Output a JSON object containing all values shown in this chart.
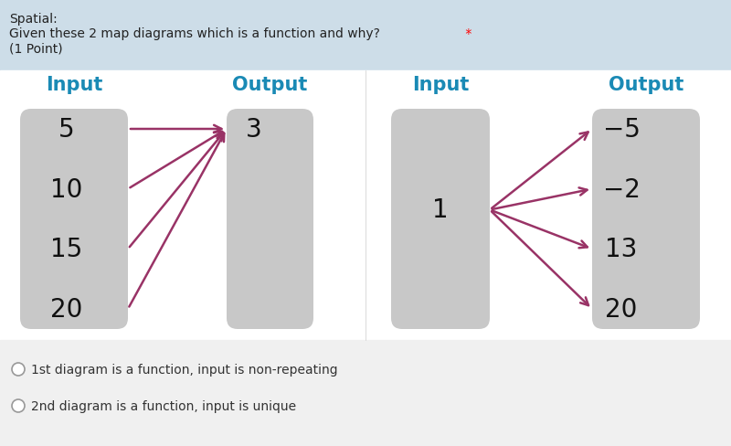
{
  "bg_top_color": "#d8e8f0",
  "bg_diagram_color": "#ffffff",
  "bg_bottom_color": "#f5f5f5",
  "box_color": "#c8c8c8",
  "arrow_color": "#993366",
  "title_color": "#1a8ab5",
  "text_color": "#111111",
  "diag1": {
    "input_label": "Input",
    "output_label": "Output",
    "inputs": [
      "5",
      "10",
      "15",
      "20"
    ],
    "outputs": [
      "3"
    ],
    "arrows": [
      [
        0,
        0
      ],
      [
        1,
        0
      ],
      [
        2,
        0
      ],
      [
        3,
        0
      ]
    ]
  },
  "diag2": {
    "input_label": "Input",
    "output_label": "Output",
    "inputs": [
      "1"
    ],
    "outputs": [
      "−5",
      "−2",
      "13",
      "20"
    ],
    "arrows": [
      [
        0,
        0
      ],
      [
        0,
        1
      ],
      [
        0,
        2
      ],
      [
        0,
        3
      ]
    ]
  },
  "options": [
    "1st diagram is a function, input is non-repeating",
    "2nd diagram is a function, input is unique"
  ],
  "header_line1": "Spatial:",
  "header_line2": "Given these 2 map diagrams which is a function and why?",
  "header_line3": "(1 Point)"
}
